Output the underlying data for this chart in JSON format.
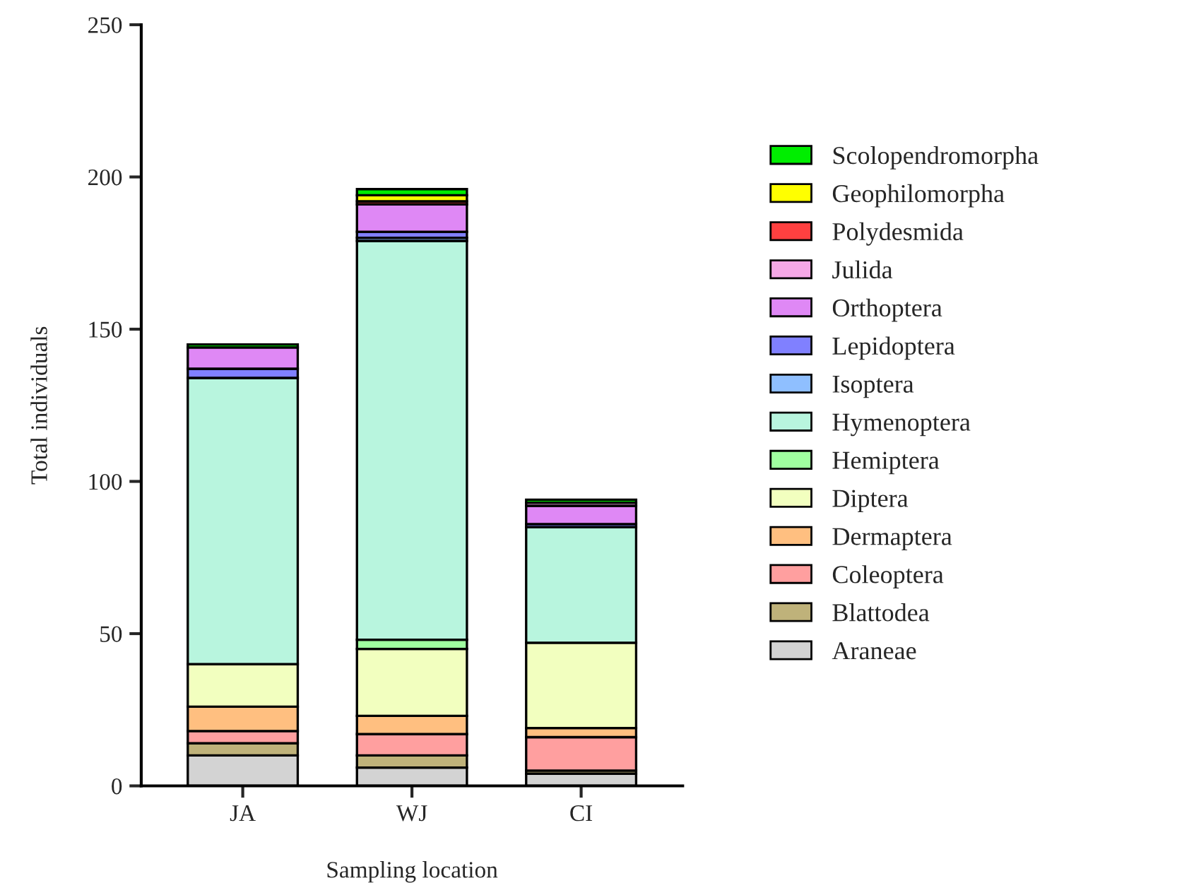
{
  "chart_data": {
    "type": "bar",
    "stacked": true,
    "xlabel": "Sampling location",
    "ylabel": "Total individuals",
    "categories": [
      "JA",
      "WJ",
      "CI"
    ],
    "ylim": [
      0,
      250
    ],
    "yticks": [
      0,
      50,
      100,
      150,
      200,
      250
    ],
    "grid": false,
    "legend": "right",
    "series": [
      {
        "name": "Araneae",
        "color": "#d3d3d3",
        "values": [
          10,
          6,
          4
        ]
      },
      {
        "name": "Blattodea",
        "color": "#bfb27a",
        "values": [
          4,
          4,
          1
        ]
      },
      {
        "name": "Coleoptera",
        "color": "#ff9f9f",
        "values": [
          4,
          7,
          11
        ]
      },
      {
        "name": "Dermaptera",
        "color": "#ffbf80",
        "values": [
          8,
          6,
          3
        ]
      },
      {
        "name": "Diptera",
        "color": "#f2ffbf",
        "values": [
          14,
          22,
          28
        ]
      },
      {
        "name": "Hemiptera",
        "color": "#a0ffa0",
        "values": [
          null,
          3,
          null
        ]
      },
      {
        "name": "Hymenoptera",
        "color": "#b8f5de",
        "values": [
          94,
          131,
          38
        ]
      },
      {
        "name": "Isoptera",
        "color": "#8fbfff",
        "values": [
          null,
          1,
          null
        ]
      },
      {
        "name": "Lepidoptera",
        "color": "#8080ff",
        "values": [
          3,
          2,
          1
        ]
      },
      {
        "name": "Orthoptera",
        "color": "#df88f5",
        "values": [
          7,
          9,
          6
        ]
      },
      {
        "name": "Julida",
        "color": "#f5a8e6",
        "values": [
          null,
          null,
          1
        ]
      },
      {
        "name": "Polydesmida",
        "color": "#ff4040",
        "values": [
          null,
          1,
          null
        ]
      },
      {
        "name": "Geophilomorpha",
        "color": "#ffff00",
        "values": [
          null,
          2,
          null
        ]
      },
      {
        "name": "Scolopendromorpha",
        "color": "#00ee00",
        "values": [
          1,
          2,
          1
        ]
      }
    ]
  }
}
